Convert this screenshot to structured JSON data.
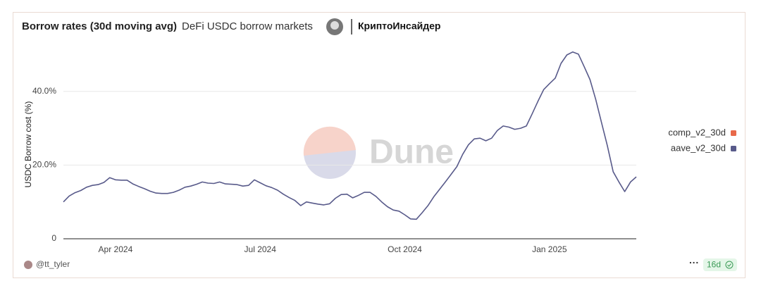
{
  "chart_data": {
    "type": "line",
    "title": "Borrow rates (30d moving avg)",
    "subtitle": "DeFi USDC borrow markets",
    "y_label": "USDC Borrow cost (%)",
    "watermark": "Dune",
    "categories": [
      null,
      null,
      null,
      null,
      null,
      null,
      null,
      null,
      null,
      "Apr 2024",
      null,
      null,
      null,
      null,
      null,
      null,
      null,
      null,
      null,
      null,
      null,
      null,
      null,
      null,
      null,
      null,
      null,
      null,
      null,
      null,
      null,
      null,
      null,
      null,
      "Jul 2024",
      null,
      null,
      null,
      null,
      null,
      null,
      null,
      null,
      null,
      null,
      null,
      null,
      null,
      null,
      null,
      null,
      null,
      null,
      null,
      null,
      null,
      null,
      null,
      null,
      "Oct 2024",
      null,
      null,
      null,
      null,
      null,
      null,
      null,
      null,
      null,
      null,
      null,
      null,
      null,
      null,
      null,
      null,
      null,
      null,
      null,
      null,
      null,
      null,
      null,
      null,
      "Jan 2025",
      null,
      null,
      null,
      null,
      null,
      null,
      null,
      null,
      null,
      null,
      null,
      null,
      null,
      null,
      null
    ],
    "series": [
      {
        "name": "comp_v2_30d",
        "color": "#e8694a",
        "values": [
          null,
          null,
          null,
          null,
          null,
          null,
          null,
          null,
          null,
          null,
          null,
          null,
          null,
          null,
          null,
          null,
          null,
          null,
          null,
          null,
          null,
          null,
          null,
          null,
          null,
          null,
          null,
          null,
          null,
          null,
          null,
          null,
          null,
          null,
          null,
          null,
          null,
          null,
          null,
          null,
          null,
          null,
          null,
          null,
          null,
          null,
          null,
          null,
          null,
          null,
          null,
          null,
          null,
          null,
          null,
          null,
          null,
          null,
          null,
          null,
          null,
          null,
          null,
          null,
          null,
          null,
          null,
          null,
          null,
          null,
          null,
          null,
          null,
          null,
          null,
          null,
          null,
          null,
          null,
          null,
          null,
          null,
          null,
          null,
          null,
          null,
          null,
          null,
          null,
          null,
          null,
          null,
          null,
          null,
          null,
          null,
          null,
          null,
          null,
          null
        ]
      },
      {
        "name": "aave_v2_30d",
        "color": "#585a8a",
        "values": [
          10.0,
          11.6,
          12.5,
          13.1,
          14.0,
          14.5,
          14.7,
          15.3,
          16.6,
          16.0,
          15.9,
          15.9,
          14.9,
          14.2,
          13.6,
          12.9,
          12.4,
          12.3,
          12.3,
          12.6,
          13.2,
          14.0,
          14.3,
          14.8,
          15.4,
          15.1,
          15.0,
          15.4,
          14.9,
          14.8,
          14.7,
          14.3,
          14.5,
          16.0,
          15.2,
          14.4,
          13.9,
          13.2,
          12.1,
          11.2,
          10.4,
          9.0,
          10.0,
          9.7,
          9.4,
          9.2,
          9.5,
          11.0,
          12.0,
          12.1,
          11.1,
          11.8,
          12.6,
          12.6,
          11.5,
          10.0,
          8.7,
          7.8,
          7.5,
          6.5,
          5.4,
          5.3,
          7.1,
          9.0,
          11.4,
          13.4,
          15.4,
          17.5,
          19.6,
          22.9,
          25.5,
          27.1,
          27.3,
          26.6,
          27.3,
          29.4,
          30.6,
          30.3,
          29.7,
          30.0,
          30.6,
          33.9,
          37.3,
          40.5,
          42.1,
          43.6,
          47.6,
          49.9,
          50.7,
          50.1,
          46.7,
          43.2,
          37.8,
          31.5,
          25.3,
          18.2,
          15.4,
          12.8,
          15.4,
          16.8
        ]
      }
    ],
    "ylim": [
      0,
      52
    ],
    "yticks": [
      0,
      {
        "value": 20,
        "label": "20.0%"
      },
      {
        "value": 40,
        "label": "40.0%"
      }
    ],
    "grid": true,
    "legend": "right"
  },
  "header": {
    "author": "КриптоИнсайдер"
  },
  "footer": {
    "user": "@tt_tyler",
    "age": "16d"
  }
}
